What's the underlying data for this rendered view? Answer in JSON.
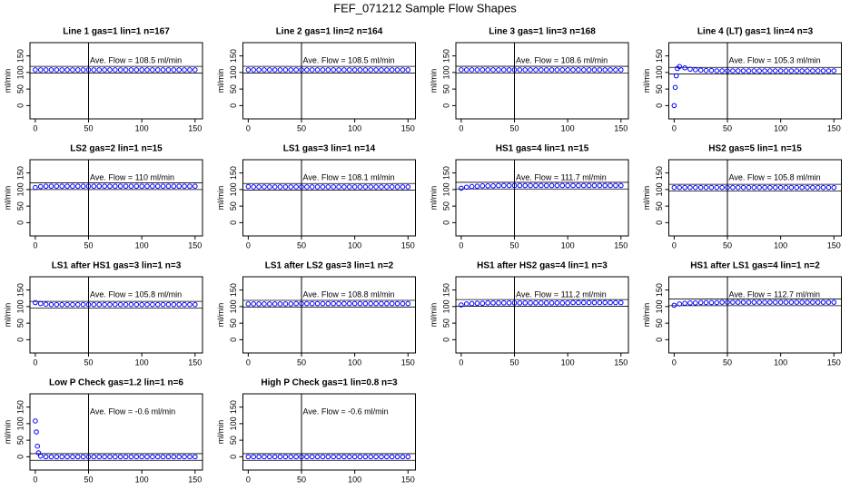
{
  "title": "FEF_071212  Sample Flow Shapes",
  "chart_data": [
    {
      "type": "scatter",
      "title": "Line 1 gas=1 lin=1 n=167",
      "annotation": "Ave. Flow = 108.5  ml/min",
      "ylabel": "ml/min",
      "color": "#0000ff",
      "xlim": [
        -5,
        157
      ],
      "ylim": [
        -40,
        190
      ],
      "xticks": [
        0,
        50,
        100,
        150
      ],
      "yticks": [
        0,
        50,
        100,
        150
      ],
      "vlines": [
        50
      ],
      "hlines": [
        98.5,
        118.5
      ],
      "x": [
        0,
        5,
        10,
        15,
        20,
        25,
        30,
        35,
        40,
        45,
        50,
        55,
        60,
        65,
        70,
        75,
        80,
        85,
        90,
        95,
        100,
        105,
        110,
        115,
        120,
        125,
        130,
        135,
        140,
        145,
        150
      ],
      "y": [
        108,
        108,
        108,
        108,
        108,
        108,
        108,
        108,
        108,
        108,
        108,
        108,
        108,
        108,
        108,
        108,
        108,
        108,
        108,
        108,
        108,
        108,
        108,
        108,
        108,
        108,
        108,
        108,
        108,
        108,
        108
      ]
    },
    {
      "type": "scatter",
      "title": "Line 2 gas=1 lin=2 n=164",
      "annotation": "Ave. Flow = 108.5  ml/min",
      "ylabel": "ml/min",
      "color": "#0000ff",
      "xlim": [
        -5,
        157
      ],
      "ylim": [
        -40,
        190
      ],
      "xticks": [
        0,
        50,
        100,
        150
      ],
      "yticks": [
        0,
        50,
        100,
        150
      ],
      "vlines": [
        50
      ],
      "hlines": [
        98.5,
        118.5
      ],
      "x": [
        0,
        5,
        10,
        15,
        20,
        25,
        30,
        35,
        40,
        45,
        50,
        55,
        60,
        65,
        70,
        75,
        80,
        85,
        90,
        95,
        100,
        105,
        110,
        115,
        120,
        125,
        130,
        135,
        140,
        145,
        150
      ],
      "y": [
        108,
        108,
        108,
        108,
        108,
        108,
        108,
        108,
        108,
        108,
        108,
        108,
        108,
        108,
        108,
        108,
        108,
        108,
        108,
        108,
        108,
        108,
        108,
        108,
        108,
        108,
        108,
        108,
        108,
        108,
        108
      ]
    },
    {
      "type": "scatter",
      "title": "Line 3 gas=1 lin=3 n=168",
      "annotation": "Ave. Flow = 108.6  ml/min",
      "ylabel": "ml/min",
      "color": "#0000ff",
      "xlim": [
        -5,
        157
      ],
      "ylim": [
        -40,
        190
      ],
      "xticks": [
        0,
        50,
        100,
        150
      ],
      "yticks": [
        0,
        50,
        100,
        150
      ],
      "vlines": [
        50
      ],
      "hlines": [
        98.6,
        118.6
      ],
      "x": [
        0,
        5,
        10,
        15,
        20,
        25,
        30,
        35,
        40,
        45,
        50,
        55,
        60,
        65,
        70,
        75,
        80,
        85,
        90,
        95,
        100,
        105,
        110,
        115,
        120,
        125,
        130,
        135,
        140,
        145,
        150
      ],
      "y": [
        108,
        108,
        108,
        108,
        108,
        108,
        108,
        108,
        108,
        108,
        108,
        108,
        108,
        108,
        108,
        108,
        108,
        108,
        108,
        108,
        108,
        108,
        108,
        108,
        108,
        108,
        108,
        108,
        108,
        108,
        108
      ]
    },
    {
      "type": "scatter",
      "title": "Line 4 (LT) gas=1 lin=4 n=3",
      "annotation": "Ave. Flow = 105.3  ml/min",
      "ylabel": "ml/min",
      "color": "#0000ff",
      "xlim": [
        -5,
        157
      ],
      "ylim": [
        -40,
        190
      ],
      "xticks": [
        0,
        50,
        100,
        150
      ],
      "yticks": [
        0,
        50,
        100,
        150
      ],
      "vlines": [
        50
      ],
      "hlines": [
        95.3,
        115.3
      ],
      "x": [
        0,
        1,
        2,
        3,
        5,
        10,
        15,
        20,
        25,
        30,
        35,
        40,
        45,
        50,
        55,
        60,
        65,
        70,
        75,
        80,
        85,
        90,
        95,
        100,
        105,
        110,
        115,
        120,
        125,
        130,
        135,
        140,
        145,
        150
      ],
      "y": [
        0,
        55,
        90,
        112,
        118,
        114,
        110,
        108,
        107,
        106,
        106,
        105,
        105,
        105,
        105,
        105,
        105,
        105,
        105,
        105,
        105,
        105,
        105,
        105,
        105,
        105,
        105,
        105,
        105,
        105,
        105,
        105,
        105,
        105
      ]
    },
    {
      "type": "scatter",
      "title": "LS2 gas=2 lin=1 n=15",
      "annotation": "Ave. Flow = 110  ml/min",
      "ylabel": "ml/min",
      "color": "#0000ff",
      "xlim": [
        -5,
        157
      ],
      "ylim": [
        -40,
        190
      ],
      "xticks": [
        0,
        50,
        100,
        150
      ],
      "yticks": [
        0,
        50,
        100,
        150
      ],
      "vlines": [
        50
      ],
      "hlines": [
        100,
        120
      ],
      "x": [
        0,
        5,
        10,
        15,
        20,
        25,
        30,
        35,
        40,
        45,
        50,
        55,
        60,
        65,
        70,
        75,
        80,
        85,
        90,
        95,
        100,
        105,
        110,
        115,
        120,
        125,
        130,
        135,
        140,
        145,
        150
      ],
      "y": [
        106,
        109,
        110,
        110,
        110,
        110,
        110,
        110,
        110,
        110,
        110,
        110,
        110,
        110,
        110,
        110,
        110,
        110,
        110,
        110,
        110,
        110,
        110,
        110,
        110,
        110,
        110,
        110,
        110,
        110,
        110
      ]
    },
    {
      "type": "scatter",
      "title": "LS1 gas=3 lin=1 n=14",
      "annotation": "Ave. Flow = 108.1  ml/min",
      "ylabel": "ml/min",
      "color": "#0000ff",
      "xlim": [
        -5,
        157
      ],
      "ylim": [
        -40,
        190
      ],
      "xticks": [
        0,
        50,
        100,
        150
      ],
      "yticks": [
        0,
        50,
        100,
        150
      ],
      "vlines": [
        50
      ],
      "hlines": [
        98.1,
        118.1
      ],
      "x": [
        0,
        5,
        10,
        15,
        20,
        25,
        30,
        35,
        40,
        45,
        50,
        55,
        60,
        65,
        70,
        75,
        80,
        85,
        90,
        95,
        100,
        105,
        110,
        115,
        120,
        125,
        130,
        135,
        140,
        145,
        150
      ],
      "y": [
        109,
        108,
        108,
        108,
        108,
        108,
        108,
        108,
        108,
        108,
        108,
        108,
        108,
        108,
        108,
        108,
        108,
        108,
        108,
        108,
        108,
        108,
        108,
        108,
        108,
        108,
        108,
        108,
        108,
        108,
        108
      ]
    },
    {
      "type": "scatter",
      "title": "HS1 gas=4 lin=1 n=15",
      "annotation": "Ave. Flow = 111.7  ml/min",
      "ylabel": "ml/min",
      "color": "#0000ff",
      "xlim": [
        -5,
        157
      ],
      "ylim": [
        -40,
        190
      ],
      "xticks": [
        0,
        50,
        100,
        150
      ],
      "yticks": [
        0,
        50,
        100,
        150
      ],
      "vlines": [
        50
      ],
      "hlines": [
        101.7,
        121.7
      ],
      "x": [
        0,
        5,
        10,
        15,
        20,
        25,
        30,
        35,
        40,
        45,
        50,
        55,
        60,
        65,
        70,
        75,
        80,
        85,
        90,
        95,
        100,
        105,
        110,
        115,
        120,
        125,
        130,
        135,
        140,
        145,
        150
      ],
      "y": [
        104,
        107,
        109,
        110,
        111,
        111,
        111,
        112,
        112,
        112,
        112,
        112,
        112,
        112,
        112,
        112,
        112,
        112,
        112,
        112,
        112,
        112,
        112,
        112,
        112,
        112,
        112,
        112,
        112,
        112,
        112
      ]
    },
    {
      "type": "scatter",
      "title": "HS2 gas=5 lin=1 n=15",
      "annotation": "Ave. Flow = 105.8  ml/min",
      "ylabel": "ml/min",
      "color": "#0000ff",
      "xlim": [
        -5,
        157
      ],
      "ylim": [
        -40,
        190
      ],
      "xticks": [
        0,
        50,
        100,
        150
      ],
      "yticks": [
        0,
        50,
        100,
        150
      ],
      "vlines": [
        50
      ],
      "hlines": [
        95.8,
        115.8
      ],
      "x": [
        0,
        5,
        10,
        15,
        20,
        25,
        30,
        35,
        40,
        45,
        50,
        55,
        60,
        65,
        70,
        75,
        80,
        85,
        90,
        95,
        100,
        105,
        110,
        115,
        120,
        125,
        130,
        135,
        140,
        145,
        150
      ],
      "y": [
        106,
        106,
        106,
        106,
        106,
        106,
        106,
        106,
        106,
        106,
        106,
        106,
        106,
        106,
        106,
        106,
        106,
        106,
        106,
        106,
        106,
        106,
        106,
        106,
        106,
        106,
        106,
        106,
        106,
        106,
        106
      ]
    },
    {
      "type": "scatter",
      "title": "LS1 after HS1 gas=3 lin=1 n=3",
      "annotation": "Ave. Flow = 105.8  ml/min",
      "ylabel": "ml/min",
      "color": "#0000ff",
      "xlim": [
        -5,
        157
      ],
      "ylim": [
        -40,
        190
      ],
      "xticks": [
        0,
        50,
        100,
        150
      ],
      "yticks": [
        0,
        50,
        100,
        150
      ],
      "vlines": [
        50
      ],
      "hlines": [
        95.8,
        115.8
      ],
      "x": [
        0,
        5,
        10,
        15,
        20,
        25,
        30,
        35,
        40,
        45,
        50,
        55,
        60,
        65,
        70,
        75,
        80,
        85,
        90,
        95,
        100,
        105,
        110,
        115,
        120,
        125,
        130,
        135,
        140,
        145,
        150
      ],
      "y": [
        112,
        109,
        107,
        106,
        106,
        106,
        106,
        106,
        106,
        106,
        106,
        106,
        106,
        106,
        106,
        106,
        106,
        106,
        106,
        106,
        106,
        106,
        106,
        106,
        106,
        106,
        106,
        106,
        106,
        106,
        106
      ]
    },
    {
      "type": "scatter",
      "title": "LS1 after LS2 gas=3 lin=1 n=2",
      "annotation": "Ave. Flow = 108.8  ml/min",
      "ylabel": "ml/min",
      "color": "#0000ff",
      "xlim": [
        -5,
        157
      ],
      "ylim": [
        -40,
        190
      ],
      "xticks": [
        0,
        50,
        100,
        150
      ],
      "yticks": [
        0,
        50,
        100,
        150
      ],
      "vlines": [
        50
      ],
      "hlines": [
        98.8,
        118.8
      ],
      "x": [
        0,
        5,
        10,
        15,
        20,
        25,
        30,
        35,
        40,
        45,
        50,
        55,
        60,
        65,
        70,
        75,
        80,
        85,
        90,
        95,
        100,
        105,
        110,
        115,
        120,
        125,
        130,
        135,
        140,
        145,
        150
      ],
      "y": [
        108,
        108,
        108,
        108,
        108,
        108,
        108,
        108,
        108,
        109,
        109,
        109,
        109,
        109,
        109,
        109,
        109,
        109,
        109,
        109,
        109,
        109,
        109,
        109,
        109,
        109,
        109,
        109,
        109,
        109,
        109
      ]
    },
    {
      "type": "scatter",
      "title": "HS1 after HS2 gas=4 lin=1 n=3",
      "annotation": "Ave. Flow = 111.2  ml/min",
      "ylabel": "ml/min",
      "color": "#0000ff",
      "xlim": [
        -5,
        157
      ],
      "ylim": [
        -40,
        190
      ],
      "xticks": [
        0,
        50,
        100,
        150
      ],
      "yticks": [
        0,
        50,
        100,
        150
      ],
      "vlines": [
        50
      ],
      "hlines": [
        101.2,
        121.2
      ],
      "x": [
        0,
        5,
        10,
        15,
        20,
        25,
        30,
        35,
        40,
        45,
        50,
        55,
        60,
        65,
        70,
        75,
        80,
        85,
        90,
        95,
        100,
        105,
        110,
        115,
        120,
        125,
        130,
        135,
        140,
        145,
        150
      ],
      "y": [
        105,
        108,
        109,
        110,
        110,
        111,
        111,
        111,
        111,
        111,
        111,
        111,
        111,
        111,
        111,
        111,
        111,
        111,
        111,
        111,
        111,
        112,
        112,
        112,
        112,
        112,
        112,
        112,
        112,
        112,
        112
      ]
    },
    {
      "type": "scatter",
      "title": "HS1 after LS1 gas=4 lin=1 n=2",
      "annotation": "Ave. Flow = 112.7  ml/min",
      "ylabel": "ml/min",
      "color": "#0000ff",
      "xlim": [
        -5,
        157
      ],
      "ylim": [
        -40,
        190
      ],
      "xticks": [
        0,
        50,
        100,
        150
      ],
      "yticks": [
        0,
        50,
        100,
        150
      ],
      "vlines": [
        50
      ],
      "hlines": [
        102.7,
        122.7
      ],
      "x": [
        0,
        5,
        10,
        15,
        20,
        25,
        30,
        35,
        40,
        45,
        50,
        55,
        60,
        65,
        70,
        75,
        80,
        85,
        90,
        95,
        100,
        105,
        110,
        115,
        120,
        125,
        130,
        135,
        140,
        145,
        150
      ],
      "y": [
        104,
        108,
        110,
        111,
        111,
        112,
        112,
        112,
        112,
        113,
        113,
        113,
        113,
        113,
        113,
        113,
        113,
        113,
        113,
        113,
        113,
        113,
        113,
        113,
        113,
        113,
        113,
        113,
        113,
        113,
        113
      ]
    },
    {
      "type": "scatter",
      "title": "Low P Check gas=1.2 lin=1 n=6",
      "annotation": "Ave. Flow = -0.6  ml/min",
      "ylabel": "ml/min",
      "color": "#0000ff",
      "xlim": [
        -5,
        157
      ],
      "ylim": [
        -40,
        190
      ],
      "xticks": [
        0,
        50,
        100,
        150
      ],
      "yticks": [
        0,
        50,
        100,
        150
      ],
      "vlines": [
        50
      ],
      "hlines": [
        -10.6,
        9.4
      ],
      "x": [
        0,
        1,
        2,
        3,
        5,
        10,
        15,
        20,
        25,
        30,
        35,
        40,
        45,
        50,
        55,
        60,
        65,
        70,
        75,
        80,
        85,
        90,
        95,
        100,
        105,
        110,
        115,
        120,
        125,
        130,
        135,
        140,
        145,
        150
      ],
      "y": [
        108,
        75,
        32,
        12,
        2,
        0,
        0,
        0,
        0,
        0,
        0,
        0,
        0,
        0,
        0,
        0,
        0,
        0,
        0,
        0,
        0,
        0,
        0,
        0,
        0,
        0,
        0,
        0,
        0,
        0,
        0,
        0,
        0,
        0
      ]
    },
    {
      "type": "scatter",
      "title": "High P Check gas=1 lin=0.8 n=3",
      "annotation": "Ave. Flow = -0.6  ml/min",
      "ylabel": "ml/min",
      "color": "#0000ff",
      "xlim": [
        -5,
        157
      ],
      "ylim": [
        -40,
        190
      ],
      "xticks": [
        0,
        50,
        100,
        150
      ],
      "yticks": [
        0,
        50,
        100,
        150
      ],
      "vlines": [
        50
      ],
      "hlines": [
        -10.6,
        9.4
      ],
      "x": [
        0,
        5,
        10,
        15,
        20,
        25,
        30,
        35,
        40,
        45,
        50,
        55,
        60,
        65,
        70,
        75,
        80,
        85,
        90,
        95,
        100,
        105,
        110,
        115,
        120,
        125,
        130,
        135,
        140,
        145,
        150
      ],
      "y": [
        0,
        0,
        0,
        0,
        0,
        0,
        0,
        0,
        0,
        0,
        0,
        0,
        0,
        0,
        0,
        0,
        0,
        0,
        0,
        0,
        0,
        0,
        0,
        0,
        0,
        0,
        0,
        0,
        0,
        0,
        0
      ]
    }
  ]
}
